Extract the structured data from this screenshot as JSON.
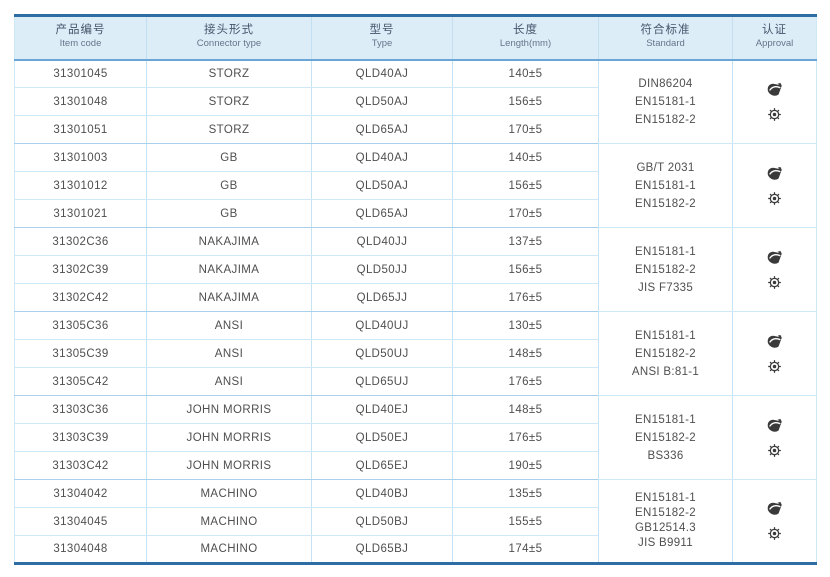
{
  "table": {
    "headers": [
      {
        "zh": "产品编号",
        "en": "Item code"
      },
      {
        "zh": "接头形式",
        "en": "Connector type"
      },
      {
        "zh": "型号",
        "en": "Type"
      },
      {
        "zh": "长度",
        "en": "Length(mm)"
      },
      {
        "zh": "符合标准",
        "en": "Standard"
      },
      {
        "zh": "认证",
        "en": "Approval"
      }
    ],
    "approval_icons": [
      "certificate-icon",
      "wheel-mark-icon"
    ],
    "groups": [
      {
        "rows": [
          {
            "item_code": "31301045",
            "connector_type": "STORZ",
            "type": "QLD40AJ",
            "length": "140±5"
          },
          {
            "item_code": "31301048",
            "connector_type": "STORZ",
            "type": "QLD50AJ",
            "length": "156±5"
          },
          {
            "item_code": "31301051",
            "connector_type": "STORZ",
            "type": "QLD65AJ",
            "length": "170±5"
          }
        ],
        "standards": [
          "DIN86204",
          "EN15181-1",
          "EN15182-2"
        ]
      },
      {
        "rows": [
          {
            "item_code": "31301003",
            "connector_type": "GB",
            "type": "QLD40AJ",
            "length": "140±5"
          },
          {
            "item_code": "31301012",
            "connector_type": "GB",
            "type": "QLD50AJ",
            "length": "156±5"
          },
          {
            "item_code": "31301021",
            "connector_type": "GB",
            "type": "QLD65AJ",
            "length": "170±5"
          }
        ],
        "standards": [
          "GB/T 2031",
          "EN15181-1",
          "EN15182-2"
        ]
      },
      {
        "rows": [
          {
            "item_code": "31302C36",
            "connector_type": "NAKAJIMA",
            "type": "QLD40JJ",
            "length": "137±5"
          },
          {
            "item_code": "31302C39",
            "connector_type": "NAKAJIMA",
            "type": "QLD50JJ",
            "length": "156±5"
          },
          {
            "item_code": "31302C42",
            "connector_type": "NAKAJIMA",
            "type": "QLD65JJ",
            "length": "176±5"
          }
        ],
        "standards": [
          "EN15181-1",
          "EN15182-2",
          "JIS F7335"
        ]
      },
      {
        "rows": [
          {
            "item_code": "31305C36",
            "connector_type": "ANSI",
            "type": "QLD40UJ",
            "length": "130±5"
          },
          {
            "item_code": "31305C39",
            "connector_type": "ANSI",
            "type": "QLD50UJ",
            "length": "148±5"
          },
          {
            "item_code": "31305C42",
            "connector_type": "ANSI",
            "type": "QLD65UJ",
            "length": "176±5"
          }
        ],
        "standards": [
          "EN15181-1",
          "EN15182-2",
          "ANSI B:81-1"
        ]
      },
      {
        "rows": [
          {
            "item_code": "31303C36",
            "connector_type": "JOHN MORRIS",
            "type": "QLD40EJ",
            "length": "148±5"
          },
          {
            "item_code": "31303C39",
            "connector_type": "JOHN MORRIS",
            "type": "QLD50EJ",
            "length": "176±5"
          },
          {
            "item_code": "31303C42",
            "connector_type": "JOHN MORRIS",
            "type": "QLD65EJ",
            "length": "190±5"
          }
        ],
        "standards": [
          "EN15181-1",
          "EN15182-2",
          "BS336"
        ]
      },
      {
        "rows": [
          {
            "item_code": "31304042",
            "connector_type": "MACHINO",
            "type": "QLD40BJ",
            "length": "135±5"
          },
          {
            "item_code": "31304045",
            "connector_type": "MACHINO",
            "type": "QLD50BJ",
            "length": "155±5"
          },
          {
            "item_code": "31304048",
            "connector_type": "MACHINO",
            "type": "QLD65BJ",
            "length": "174±5"
          }
        ],
        "standards": [
          "EN15181-1",
          "EN15182-2",
          "GB12514.3",
          "JIS B9911"
        ]
      }
    ]
  },
  "colors": {
    "accent": "#2e6da4",
    "header_bg": "#ddedf8",
    "row_line": "#cfe8f7",
    "group_line": "#a9d0ea",
    "header_line": "#6aa7d8",
    "text": "#4f4f4f",
    "icon": "#3a3a3a"
  }
}
